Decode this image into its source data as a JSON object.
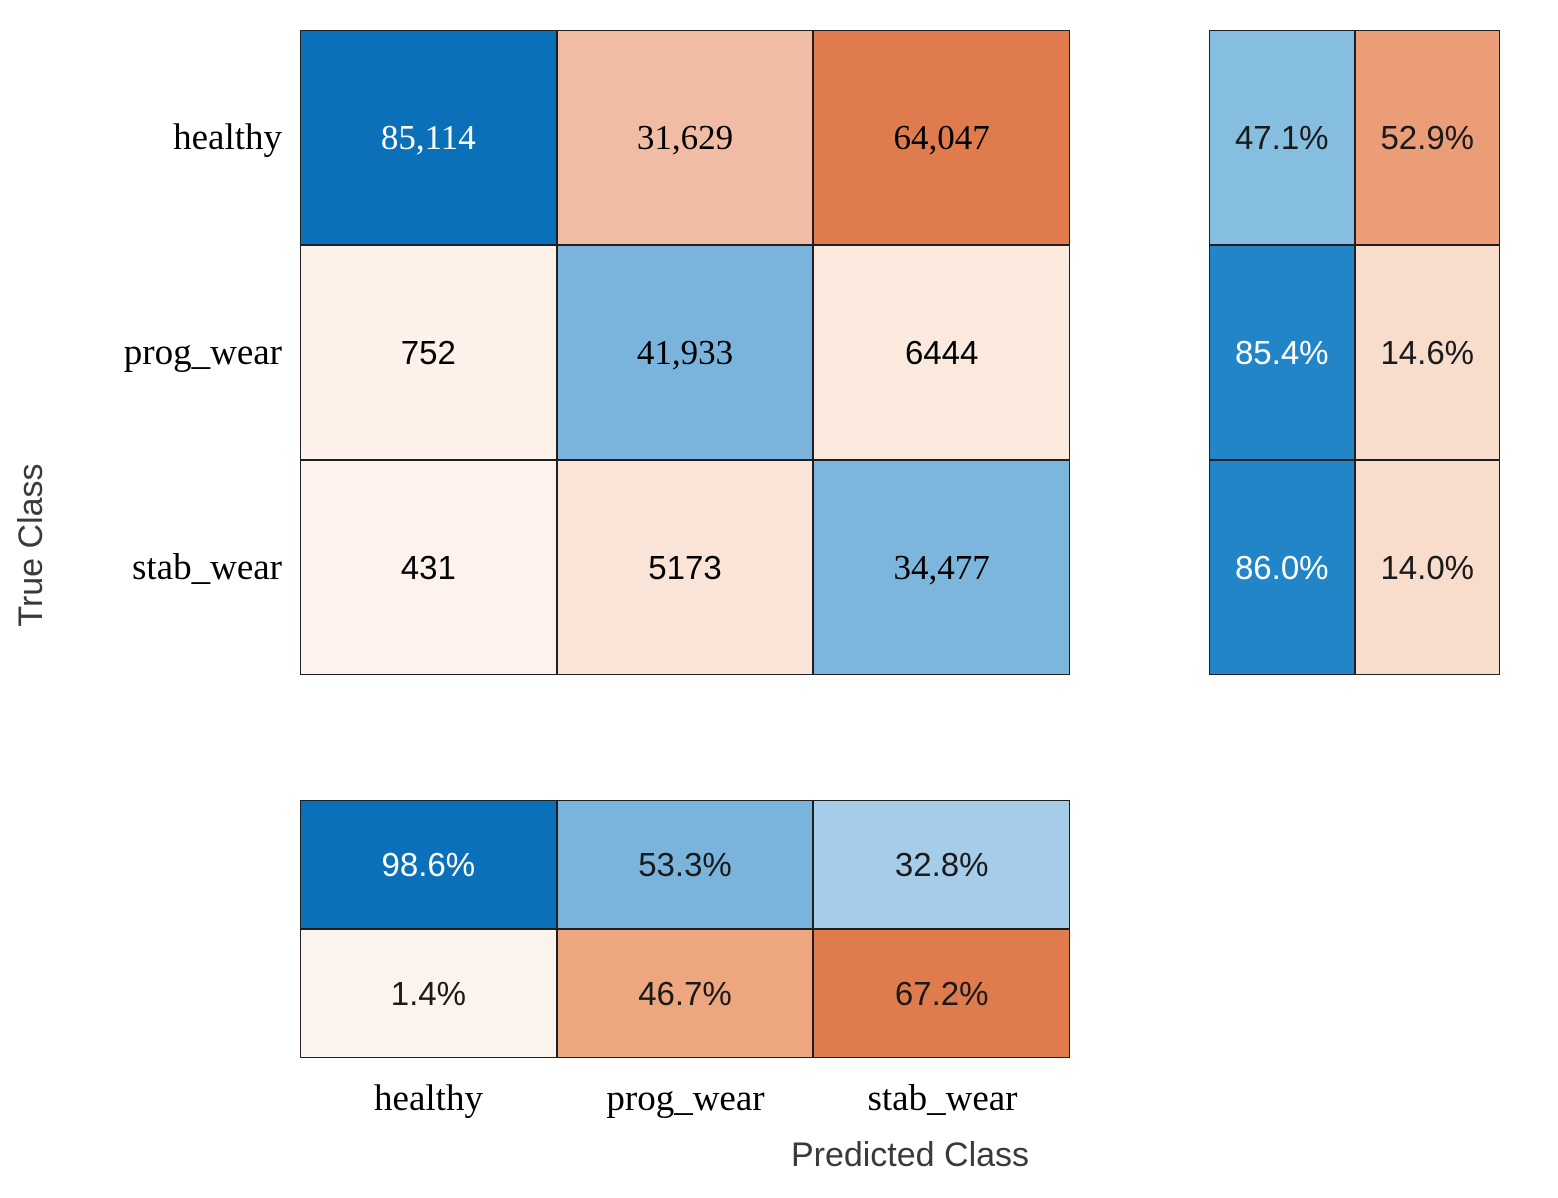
{
  "figure": {
    "y_axis_label": "True Class",
    "x_axis_label": "Predicted Class",
    "background_color": "#ffffff",
    "grid_line_color": "#1f1f1f",
    "axis_label_color": "#3a3a3a"
  },
  "chart_data": {
    "type": "heatmap",
    "subtype": "confusion_matrix_with_row_and_column_summaries",
    "title": "",
    "xlabel": "Predicted Class",
    "ylabel": "True Class",
    "legend": "none",
    "classes": [
      "healthy",
      "prog_wear",
      "stab_wear"
    ],
    "counts": [
      [
        85114,
        31629,
        64047
      ],
      [
        752,
        41933,
        6444
      ],
      [
        431,
        5173,
        34477
      ]
    ],
    "row_summary_percent": [
      [
        47.1,
        52.9
      ],
      [
        85.4,
        14.6
      ],
      [
        86.0,
        14.0
      ]
    ],
    "col_summary_percent": [
      [
        98.6,
        53.3,
        32.8
      ],
      [
        1.4,
        46.7,
        67.2
      ]
    ],
    "diagonal_color": "#0a70b9",
    "off_diagonal_color": "#e07b4e",
    "grids": {
      "main": {
        "cell_name": "confusion-cell",
        "display": [
          [
            "85,114",
            "31,629",
            "64,047"
          ],
          [
            "752",
            "41,933",
            "6444"
          ],
          [
            "431",
            "5173",
            "34,477"
          ]
        ],
        "bg": [
          [
            "#0a70b9",
            "#f0bca3",
            "#e07b4e"
          ],
          [
            "#fdf1ea",
            "#7ab4dd",
            "#fbe9de"
          ],
          [
            "#fdf2ec",
            "#f9e4d7",
            "#7db6dd"
          ]
        ],
        "fg": [
          [
            "#ffffff",
            "#000000",
            "#000000"
          ],
          [
            "#000000",
            "#000000",
            "#000000"
          ],
          [
            "#000000",
            "#000000",
            "#000000"
          ]
        ]
      },
      "row": {
        "cell_name": "row-summary-cell",
        "display": [
          [
            "47.1%",
            "52.9%"
          ],
          [
            "85.4%",
            "14.6%"
          ],
          [
            "86.0%",
            "14.0%"
          ]
        ],
        "bg": [
          [
            "#85bedf",
            "#ea9d77"
          ],
          [
            "#2185c7",
            "#f8ddcd"
          ],
          [
            "#2185c7",
            "#f8dccc"
          ]
        ],
        "fg": [
          [
            "#1a1a1a",
            "#1a1a1a"
          ],
          [
            "#ffffff",
            "#1a1a1a"
          ],
          [
            "#ffffff",
            "#1a1a1a"
          ]
        ]
      },
      "col": {
        "cell_name": "col-summary-cell",
        "display": [
          [
            "98.6%",
            "53.3%",
            "32.8%"
          ],
          [
            "1.4%",
            "46.7%",
            "67.2%"
          ]
        ],
        "bg": [
          [
            "#0a70b9",
            "#7ab4dd",
            "#a5cde9"
          ],
          [
            "#fdf3ed",
            "#eda67d",
            "#e07b4e"
          ]
        ],
        "fg": [
          [
            "#ffffff",
            "#1a1a1a",
            "#1a1a1a"
          ],
          [
            "#1a1a1a",
            "#1a1a1a",
            "#1a1a1a"
          ]
        ]
      }
    }
  }
}
